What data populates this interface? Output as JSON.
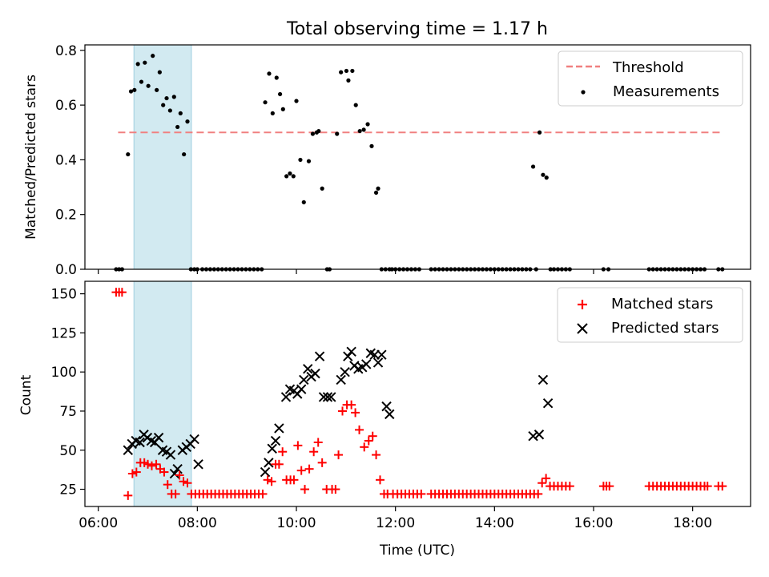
{
  "figure": {
    "title": "Total observing time = 1.17 h"
  },
  "chart_data": [
    {
      "type": "scatter",
      "panel": "top",
      "xlabel": "",
      "ylabel": "Matched/Predicted stars",
      "x_unit": "hours UTC",
      "xlim": [
        5.73,
        19.17
      ],
      "ylim": [
        0,
        0.82
      ],
      "yticks": [
        0.0,
        0.2,
        0.4,
        0.6,
        0.8
      ],
      "ytick_labels": [
        "0.0",
        "0.2",
        "0.4",
        "0.6",
        "0.8"
      ],
      "shaded_span": {
        "x0": 6.72,
        "x1": 7.88,
        "color": "#add8e6"
      },
      "legend": {
        "position": "top-right",
        "entries": [
          {
            "label": "Threshold",
            "style": "dashed-line",
            "color": "#f08080"
          },
          {
            "label": "Measurements",
            "style": "dot",
            "color": "#000000"
          }
        ]
      },
      "series": [
        {
          "name": "Threshold",
          "kind": "line",
          "color": "#f08080",
          "x": [
            6.4,
            18.6
          ],
          "values": [
            0.5,
            0.5
          ]
        },
        {
          "name": "Measurements",
          "kind": "points",
          "color": "#000000",
          "x": [
            6.36,
            6.42,
            6.48,
            6.6,
            6.66,
            6.73,
            6.8,
            6.87,
            6.94,
            7.01,
            7.1,
            7.18,
            7.24,
            7.31,
            7.38,
            7.45,
            7.53,
            7.6,
            7.66,
            7.73,
            7.8,
            7.87,
            7.94,
            8.0,
            8.1,
            8.18,
            8.26,
            8.34,
            8.42,
            8.5,
            8.58,
            8.66,
            8.74,
            8.82,
            8.9,
            8.98,
            9.06,
            9.14,
            9.22,
            9.3,
            9.37,
            9.45,
            9.52,
            9.6,
            9.67,
            9.73,
            9.8,
            9.87,
            9.94,
            10.0,
            10.08,
            10.15,
            10.25,
            10.33,
            10.41,
            10.45,
            10.52,
            10.62,
            10.67,
            10.82,
            10.9,
            11.01,
            11.05,
            11.13,
            11.2,
            11.28,
            11.36,
            11.44,
            11.52,
            11.61,
            11.65,
            11.72,
            11.8,
            11.88,
            11.93,
            12.0,
            12.08,
            12.16,
            12.24,
            12.32,
            12.4,
            12.48,
            12.72,
            12.8,
            12.88,
            12.96,
            13.04,
            13.12,
            13.2,
            13.28,
            13.36,
            13.44,
            13.52,
            13.6,
            13.68,
            13.76,
            13.84,
            13.92,
            14.0,
            14.08,
            14.16,
            14.24,
            14.32,
            14.4,
            14.48,
            14.56,
            14.64,
            14.72,
            14.78,
            14.84,
            14.91,
            14.98,
            15.05,
            15.13,
            15.2,
            15.28,
            15.36,
            15.44,
            15.52,
            16.2,
            16.3,
            17.12,
            17.2,
            17.28,
            17.36,
            17.44,
            17.52,
            17.6,
            17.68,
            17.76,
            17.84,
            17.92,
            18.0,
            18.08,
            18.16,
            18.24,
            18.52,
            18.6
          ],
          "values": [
            0,
            0,
            0,
            0.42,
            0.65,
            0.655,
            0.75,
            0.685,
            0.755,
            0.67,
            0.78,
            0.655,
            0.72,
            0.6,
            0.625,
            0.58,
            0.63,
            0.52,
            0.57,
            0.42,
            0.54,
            0,
            0,
            0,
            0,
            0,
            0,
            0,
            0,
            0,
            0,
            0,
            0,
            0,
            0,
            0,
            0,
            0,
            0,
            0,
            0.61,
            0.715,
            0.57,
            0.7,
            0.64,
            0.585,
            0.34,
            0.35,
            0.34,
            0.615,
            0.4,
            0.245,
            0.395,
            0.495,
            0.5,
            0.505,
            0.295,
            0,
            0,
            0.495,
            0.72,
            0.725,
            0.69,
            0.725,
            0.6,
            0.505,
            0.51,
            0.53,
            0.45,
            0.28,
            0.295,
            0,
            0,
            0,
            0,
            0,
            0,
            0,
            0,
            0,
            0,
            0,
            0,
            0,
            0,
            0,
            0,
            0,
            0,
            0,
            0,
            0,
            0,
            0,
            0,
            0,
            0,
            0,
            0,
            0,
            0,
            0,
            0,
            0,
            0,
            0,
            0,
            0,
            0.375,
            0,
            0.5,
            0.345,
            0.335,
            0,
            0,
            0,
            0,
            0,
            0,
            0,
            0,
            0,
            0,
            0,
            0,
            0,
            0,
            0,
            0,
            0,
            0,
            0,
            0,
            0,
            0,
            0,
            0,
            0
          ]
        }
      ]
    },
    {
      "type": "scatter",
      "panel": "bottom",
      "xlabel": "Time (UTC)",
      "ylabel": "Count",
      "x_unit": "hours UTC",
      "xlim": [
        5.73,
        19.17
      ],
      "ylim": [
        14,
        158
      ],
      "yticks": [
        25,
        50,
        75,
        100,
        125,
        150
      ],
      "ytick_labels": [
        "25",
        "50",
        "75",
        "100",
        "125",
        "150"
      ],
      "xticks": [
        6,
        8,
        10,
        12,
        14,
        16,
        18
      ],
      "xtick_labels": [
        "06:00",
        "08:00",
        "10:00",
        "12:00",
        "14:00",
        "16:00",
        "18:00"
      ],
      "shaded_span": {
        "x0": 6.72,
        "x1": 7.88,
        "color": "#add8e6"
      },
      "legend": {
        "position": "top-right",
        "entries": [
          {
            "label": "Matched stars",
            "style": "plus",
            "color": "#ff0000"
          },
          {
            "label": "Predicted stars",
            "style": "x",
            "color": "#000000"
          }
        ]
      },
      "series": [
        {
          "name": "Matched stars",
          "marker": "plus",
          "color": "#ff0000",
          "x": [
            6.36,
            6.42,
            6.48,
            6.6,
            6.69,
            6.77,
            6.85,
            6.93,
            7.0,
            7.08,
            7.17,
            7.25,
            7.33,
            7.4,
            7.48,
            7.56,
            7.64,
            7.72,
            7.8,
            7.88,
            7.96,
            8.04,
            8.12,
            8.2,
            8.28,
            8.36,
            8.44,
            8.52,
            8.6,
            8.68,
            8.76,
            8.84,
            8.92,
            9.0,
            9.08,
            9.16,
            9.24,
            9.32,
            9.42,
            9.5,
            9.58,
            9.65,
            9.72,
            9.8,
            9.88,
            9.95,
            10.03,
            10.1,
            10.17,
            10.26,
            10.35,
            10.44,
            10.52,
            10.61,
            10.72,
            10.79,
            10.85,
            10.93,
            11.02,
            11.11,
            11.19,
            11.27,
            11.37,
            11.46,
            11.54,
            11.61,
            11.69,
            11.77,
            11.84,
            11.95,
            12.04,
            12.12,
            12.2,
            12.28,
            12.36,
            12.44,
            12.52,
            12.72,
            12.8,
            12.88,
            12.96,
            13.04,
            13.12,
            13.2,
            13.28,
            13.36,
            13.44,
            13.52,
            13.6,
            13.68,
            13.76,
            13.84,
            13.92,
            14.0,
            14.08,
            14.16,
            14.24,
            14.32,
            14.4,
            14.48,
            14.56,
            14.64,
            14.72,
            14.8,
            14.88,
            14.96,
            15.04,
            15.12,
            15.2,
            15.28,
            15.36,
            15.44,
            15.52,
            16.2,
            16.26,
            16.32,
            17.12,
            17.2,
            17.28,
            17.36,
            17.44,
            17.52,
            17.6,
            17.68,
            17.76,
            17.84,
            17.92,
            18.0,
            18.08,
            18.16,
            18.24,
            18.3,
            18.52,
            18.6
          ],
          "values": [
            151,
            151,
            151,
            21,
            35,
            36,
            42,
            42,
            41,
            40,
            41,
            38,
            36,
            28,
            22,
            22,
            34,
            30,
            29,
            22,
            22,
            22,
            22,
            22,
            22,
            22,
            22,
            22,
            22,
            22,
            22,
            22,
            22,
            22,
            22,
            22,
            22,
            22,
            31,
            30,
            41,
            41,
            49,
            31,
            31,
            31,
            53,
            37,
            25,
            38,
            49,
            55,
            42,
            25,
            25,
            25,
            47,
            75,
            79,
            79,
            74,
            63,
            52,
            56,
            59,
            47,
            31,
            22,
            22,
            22,
            22,
            22,
            22,
            22,
            22,
            22,
            22,
            22,
            22,
            22,
            22,
            22,
            22,
            22,
            22,
            22,
            22,
            22,
            22,
            22,
            22,
            22,
            22,
            22,
            22,
            22,
            22,
            22,
            22,
            22,
            22,
            22,
            22,
            22,
            22,
            29,
            32,
            27,
            27,
            27,
            27,
            27,
            27,
            27,
            27,
            27,
            27,
            27,
            27,
            27,
            27,
            27,
            27,
            27,
            27,
            27,
            27,
            27,
            27,
            27,
            27,
            27,
            27,
            27
          ]
        },
        {
          "name": "Predicted stars",
          "marker": "x",
          "color": "#000000",
          "x": [
            6.6,
            6.68,
            6.76,
            6.84,
            6.92,
            6.99,
            7.07,
            7.14,
            7.22,
            7.3,
            7.38,
            7.46,
            7.54,
            7.6,
            7.7,
            7.78,
            7.86,
            7.94,
            8.02,
            9.37,
            9.44,
            9.51,
            9.58,
            9.65,
            9.79,
            9.87,
            9.95,
            10.02,
            10.1,
            10.15,
            10.23,
            10.3,
            10.38,
            10.47,
            10.55,
            10.63,
            10.7,
            10.9,
            10.98,
            11.04,
            11.11,
            11.17,
            11.25,
            11.33,
            11.41,
            11.5,
            11.58,
            11.65,
            11.72,
            11.82,
            11.88,
            14.78,
            14.9,
            14.98,
            15.08
          ],
          "values": [
            50,
            54,
            56,
            55,
            60,
            58,
            56,
            55,
            58,
            50,
            49,
            47,
            35,
            38,
            50,
            52,
            54,
            57,
            41,
            36,
            42,
            51,
            56,
            64,
            84,
            89,
            88,
            86,
            89,
            95,
            102,
            97,
            99,
            110,
            84,
            84,
            84,
            95,
            100,
            110,
            113,
            104,
            102,
            103,
            105,
            112,
            111,
            106,
            111,
            78,
            73,
            59,
            60,
            95,
            80
          ]
        }
      ]
    }
  ]
}
